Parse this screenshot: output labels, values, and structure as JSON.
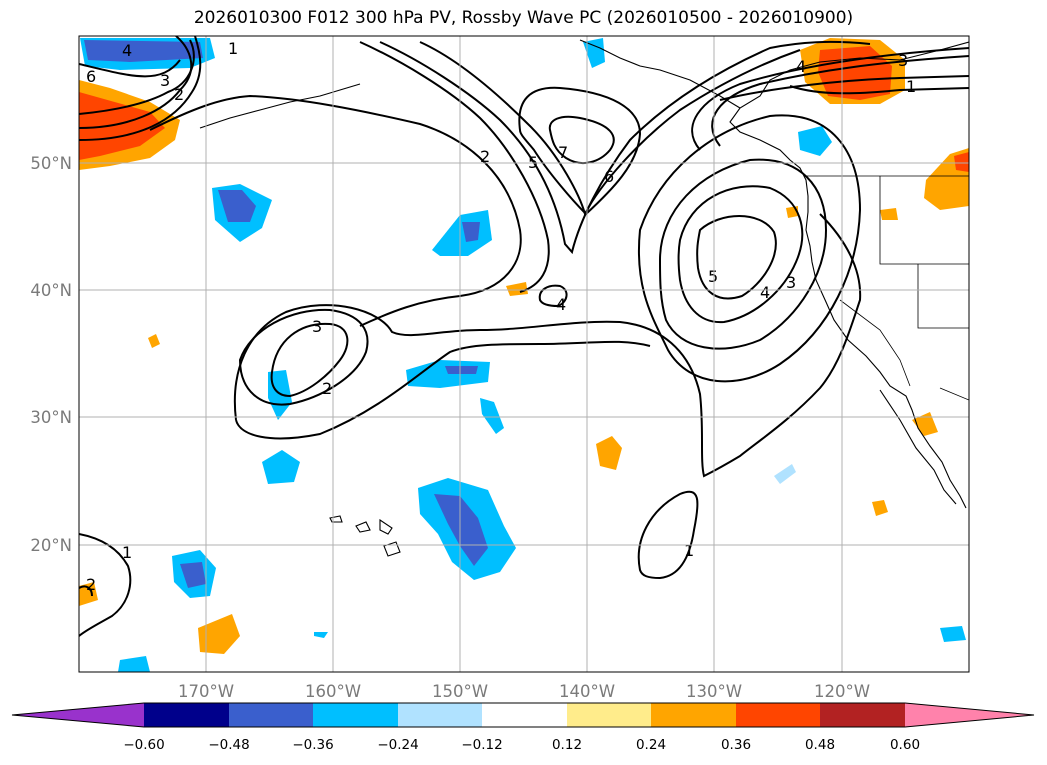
{
  "title": "2026010300 F012 300 hPa PV, Rossby Wave PC (2026010500 - 2026010900)",
  "lat_labels": [
    "50°N",
    "40°N",
    "30°N",
    "20°N"
  ],
  "lon_labels": [
    "170°W",
    "160°W",
    "150°W",
    "140°W",
    "130°W",
    "120°W"
  ],
  "colorbar": {
    "ticks": [
      "−0.60",
      "−0.48",
      "−0.36",
      "−0.24",
      "−0.12",
      "0.12",
      "0.24",
      "0.36",
      "0.48",
      "0.60"
    ],
    "colors": [
      "#9932cc",
      "#00008b",
      "#3a5fcd",
      "#00bfff",
      "#b0e2ff",
      "#ffffff",
      "#ffec8b",
      "#ffa500",
      "#ff4500",
      "#b22222",
      "#ff82ab"
    ]
  },
  "contour_labels": {
    "c1": "1",
    "c2": "2",
    "c3": "3",
    "c4": "4",
    "c5": "5",
    "c6": "6",
    "c7": "7"
  }
}
